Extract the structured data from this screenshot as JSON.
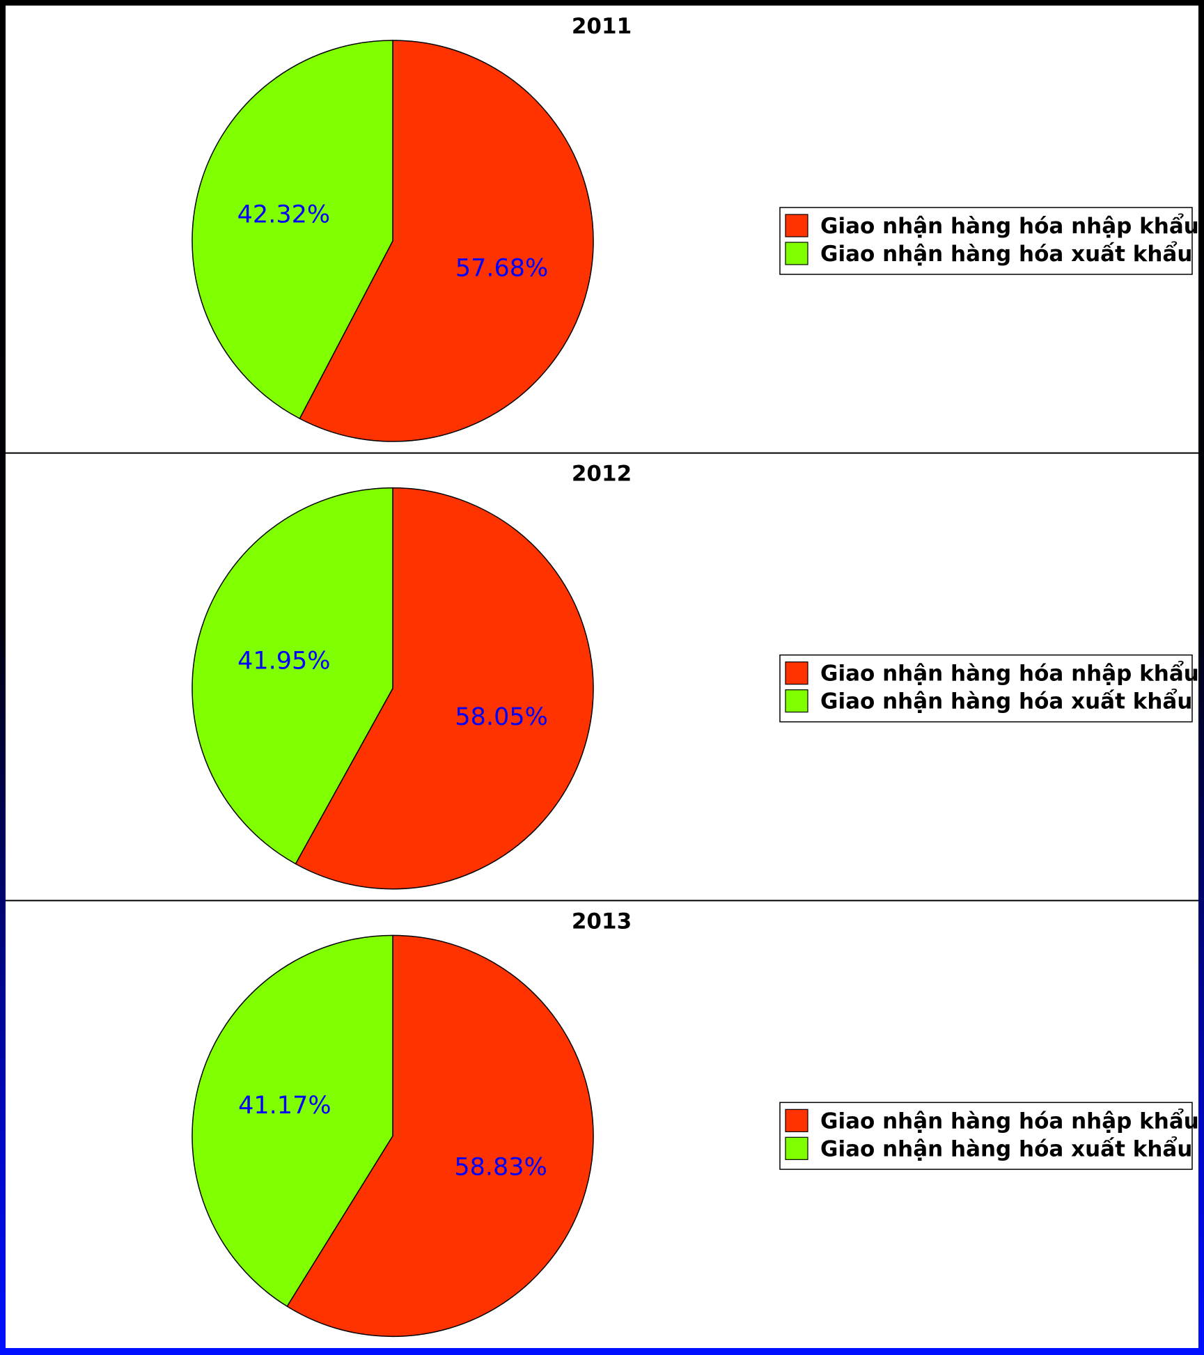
{
  "chart_data": [
    {
      "type": "pie",
      "title": "2011",
      "categories": [
        "Giao nhận hàng hóa nhập khẩu",
        "Giao nhận hàng hóa xuất khẩu"
      ],
      "values": [
        57.68,
        42.32
      ],
      "labels": [
        "57.68%",
        "42.32%"
      ],
      "colors": [
        "#ff3300",
        "#80ff00"
      ],
      "legend": "right"
    },
    {
      "type": "pie",
      "title": "2012",
      "categories": [
        "Giao nhận hàng hóa nhập khẩu",
        "Giao nhận hàng hóa xuất khẩu"
      ],
      "values": [
        58.05,
        41.95
      ],
      "labels": [
        "58.05%",
        "41.95%"
      ],
      "colors": [
        "#ff3300",
        "#80ff00"
      ],
      "legend": "right"
    },
    {
      "type": "pie",
      "title": "2013",
      "categories": [
        "Giao nhận hàng hóa nhập khẩu",
        "Giao nhận hàng hóa xuất khẩu"
      ],
      "values": [
        58.83,
        41.17
      ],
      "labels": [
        "58.83%",
        "41.17%"
      ],
      "colors": [
        "#ff3300",
        "#80ff00"
      ],
      "legend": "right"
    }
  ],
  "colors": {
    "label_text": "#0000ff",
    "frame_top": "#000000",
    "frame_bottom": "#0010ff"
  }
}
